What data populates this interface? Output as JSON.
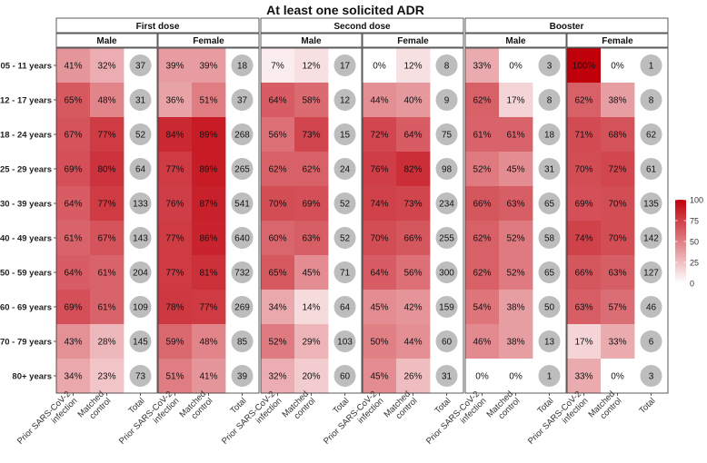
{
  "chart_data": {
    "type": "heatmap",
    "title": "At least one solicited ADR",
    "dose_groups": [
      "First dose",
      "Second dose",
      "Booster"
    ],
    "sex_groups": [
      "Male",
      "Female"
    ],
    "column_labels": [
      [
        "Prior SARS-CoV-2",
        "infection"
      ],
      [
        "Matched",
        "control"
      ],
      [
        "Total"
      ]
    ],
    "age_groups": [
      "05 - 11 years",
      "12 - 17 years",
      "18 - 24 years",
      "25 - 29 years",
      "30 - 39 years",
      "40 - 49 years",
      "50 - 59 years",
      "60 - 69 years",
      "70 - 79 years",
      "80+ years"
    ],
    "colorbar": {
      "min": 0,
      "max": 100,
      "ticks": [
        0,
        25,
        50,
        75,
        100
      ],
      "low_color": "#ffffff",
      "high_color": "#c0000b"
    },
    "panels": [
      {
        "dose": "First dose",
        "sex": "Male",
        "prior": [
          41,
          65,
          67,
          69,
          64,
          61,
          64,
          69,
          43,
          34
        ],
        "control": [
          32,
          48,
          77,
          80,
          77,
          67,
          61,
          61,
          28,
          23
        ],
        "total": [
          37,
          31,
          52,
          64,
          133,
          143,
          204,
          109,
          145,
          73
        ]
      },
      {
        "dose": "First dose",
        "sex": "Female",
        "prior": [
          39,
          36,
          84,
          77,
          76,
          77,
          77,
          78,
          59,
          51
        ],
        "control": [
          39,
          51,
          89,
          89,
          87,
          86,
          81,
          77,
          48,
          41
        ],
        "total": [
          18,
          37,
          268,
          265,
          541,
          640,
          732,
          269,
          85,
          39
        ]
      },
      {
        "dose": "Second dose",
        "sex": "Male",
        "prior": [
          7,
          64,
          56,
          62,
          70,
          60,
          65,
          34,
          52,
          32
        ],
        "control": [
          12,
          58,
          73,
          62,
          69,
          63,
          45,
          14,
          29,
          20
        ],
        "total": [
          17,
          12,
          15,
          24,
          52,
          52,
          71,
          64,
          103,
          60
        ]
      },
      {
        "dose": "Second dose",
        "sex": "Female",
        "prior": [
          0,
          44,
          72,
          76,
          74,
          70,
          64,
          45,
          50,
          45
        ],
        "control": [
          12,
          40,
          64,
          82,
          73,
          66,
          56,
          42,
          44,
          26
        ],
        "total": [
          8,
          9,
          75,
          98,
          234,
          255,
          300,
          159,
          60,
          31
        ]
      },
      {
        "dose": "Booster",
        "sex": "Male",
        "prior": [
          33,
          62,
          61,
          52,
          66,
          62,
          62,
          54,
          46,
          0
        ],
        "control": [
          0,
          17,
          61,
          45,
          63,
          52,
          52,
          38,
          38,
          0
        ],
        "total": [
          3,
          8,
          18,
          31,
          65,
          58,
          65,
          50,
          13,
          1
        ]
      },
      {
        "dose": "Booster",
        "sex": "Female",
        "prior": [
          100,
          62,
          71,
          70,
          69,
          74,
          66,
          63,
          17,
          33
        ],
        "control": [
          0,
          38,
          68,
          72,
          70,
          70,
          63,
          57,
          33,
          0
        ],
        "total": [
          1,
          8,
          62,
          61,
          135,
          142,
          127,
          46,
          6,
          3
        ]
      }
    ]
  }
}
